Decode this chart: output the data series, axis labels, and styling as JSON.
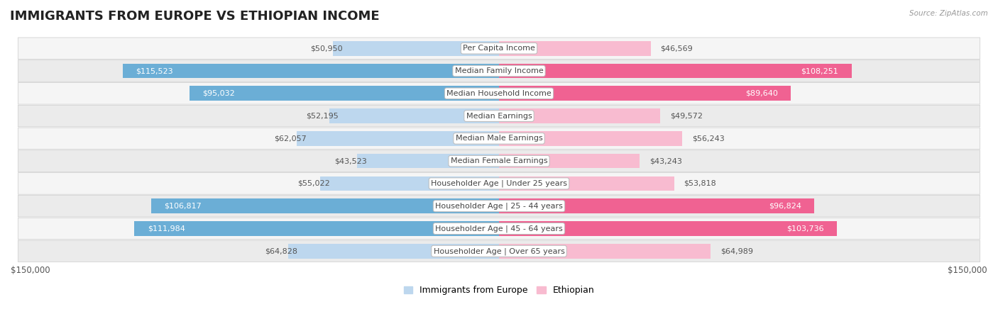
{
  "title": "IMMIGRANTS FROM EUROPE VS ETHIOPIAN INCOME",
  "source": "Source: ZipAtlas.com",
  "categories": [
    "Per Capita Income",
    "Median Family Income",
    "Median Household Income",
    "Median Earnings",
    "Median Male Earnings",
    "Median Female Earnings",
    "Householder Age | Under 25 years",
    "Householder Age | 25 - 44 years",
    "Householder Age | 45 - 64 years",
    "Householder Age | Over 65 years"
  ],
  "europe_values": [
    50950,
    115523,
    95032,
    52195,
    62057,
    43523,
    55022,
    106817,
    111984,
    64828
  ],
  "ethiopian_values": [
    46569,
    108251,
    89640,
    49572,
    56243,
    43243,
    53818,
    96824,
    103736,
    64989
  ],
  "europe_color_dark": "#6baed6",
  "europe_color_light": "#bdd7ee",
  "ethiopian_color_dark": "#f06292",
  "ethiopian_color_light": "#f8bbd0",
  "row_bg_color1": "#f5f5f5",
  "row_bg_color2": "#ebebeb",
  "max_value": 150000,
  "xlabel_left": "$150,000",
  "xlabel_right": "$150,000",
  "legend_europe": "Immigrants from Europe",
  "legend_ethiopian": "Ethiopian",
  "title_fontsize": 13,
  "value_fontsize": 8,
  "category_fontsize": 8,
  "inside_threshold": 0.45
}
